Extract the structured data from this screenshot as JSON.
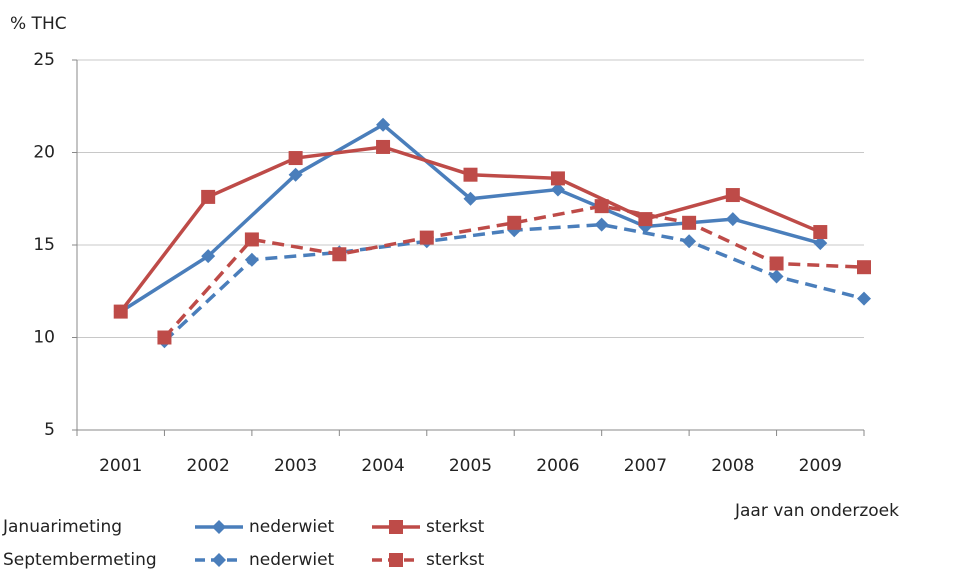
{
  "chart_data": {
    "type": "line",
    "y_label": "% THC",
    "x_label": "Jaar van onderzoek",
    "categories": [
      "2001",
      "2002",
      "2003",
      "2004",
      "2005",
      "2006",
      "2007",
      "2008",
      "2009"
    ],
    "ylim": [
      5,
      25
    ],
    "yticks": [
      5,
      10,
      15,
      20,
      25
    ],
    "grid": true,
    "series_groups": [
      {
        "name": "Januarimeting",
        "dashed": false,
        "series": [
          {
            "name": "nederwiet",
            "color": "#4a7ebb",
            "marker": "diamond",
            "values": [
              11.4,
              14.4,
              18.8,
              21.5,
              17.5,
              18.0,
              16.0,
              16.4,
              15.1
            ]
          },
          {
            "name": "sterkst",
            "color": "#be4b48",
            "marker": "square",
            "values": [
              11.4,
              17.6,
              19.7,
              20.3,
              18.8,
              18.6,
              16.4,
              17.7,
              15.7
            ]
          }
        ]
      },
      {
        "name": "Septembermeting",
        "dashed": true,
        "series": [
          {
            "name": "nederwiet",
            "color": "#4a7ebb",
            "marker": "diamond",
            "values": [
              9.8,
              14.2,
              14.6,
              15.2,
              15.8,
              16.1,
              15.2,
              13.3,
              12.1
            ]
          },
          {
            "name": "sterkst",
            "color": "#be4b48",
            "marker": "square",
            "values": [
              10.0,
              15.3,
              14.5,
              15.4,
              16.2,
              17.1,
              16.2,
              14.0,
              13.8
            ]
          }
        ]
      }
    ]
  }
}
